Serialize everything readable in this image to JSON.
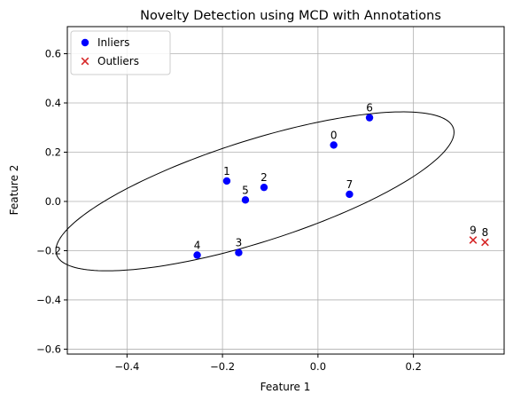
{
  "chart_data": {
    "type": "scatter",
    "title": "Novelty Detection using MCD with Annotations",
    "xlabel": "Feature 1",
    "ylabel": "Feature 2",
    "xlim": [
      -0.525,
      0.39
    ],
    "ylim": [
      -0.62,
      0.71
    ],
    "xticks": [
      -0.4,
      -0.2,
      0.0,
      0.2
    ],
    "xtick_labels": [
      "−0.4",
      "−0.2",
      "0.0",
      "0.2"
    ],
    "yticks": [
      -0.6,
      -0.4,
      -0.2,
      0.0,
      0.2,
      0.4,
      0.6
    ],
    "ytick_labels": [
      "−0.6",
      "−0.4",
      "−0.2",
      "0.0",
      "0.2",
      "0.4",
      "0.6"
    ],
    "grid": true,
    "legend_position": "top-left",
    "series": [
      {
        "name": "Inliers",
        "marker": "circle",
        "color": "#0000ff",
        "points": [
          {
            "label": "0",
            "x": 0.033,
            "y": 0.229
          },
          {
            "label": "1",
            "x": -0.191,
            "y": 0.083
          },
          {
            "label": "2",
            "x": -0.113,
            "y": 0.057
          },
          {
            "label": "3",
            "x": -0.166,
            "y": -0.208
          },
          {
            "label": "4",
            "x": -0.253,
            "y": -0.218
          },
          {
            "label": "5",
            "x": -0.152,
            "y": 0.006
          },
          {
            "label": "6",
            "x": 0.108,
            "y": 0.34
          },
          {
            "label": "7",
            "x": 0.066,
            "y": 0.029
          }
        ]
      },
      {
        "name": "Outliers",
        "marker": "x",
        "color": "#d62728",
        "points": [
          {
            "label": "8",
            "x": 0.35,
            "y": -0.166
          },
          {
            "label": "9",
            "x": 0.325,
            "y": -0.157
          }
        ]
      }
    ],
    "ellipse": {
      "center": [
        -0.132,
        0.041
      ],
      "semi_major": 0.495,
      "semi_minor": 0.182,
      "angle_deg": 35.4,
      "color": "#000000"
    }
  }
}
